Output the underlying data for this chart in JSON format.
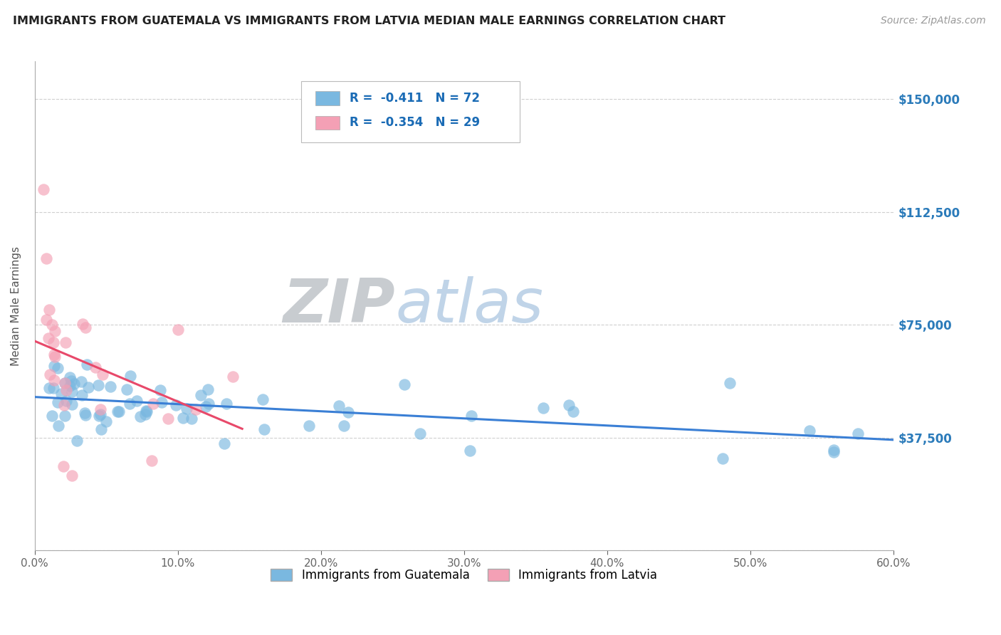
{
  "title": "IMMIGRANTS FROM GUATEMALA VS IMMIGRANTS FROM LATVIA MEDIAN MALE EARNINGS CORRELATION CHART",
  "source": "Source: ZipAtlas.com",
  "ylabel": "Median Male Earnings",
  "xlim": [
    0.0,
    0.6
  ],
  "ylim": [
    0,
    162500
  ],
  "xtick_labels": [
    "0.0%",
    "10.0%",
    "20.0%",
    "30.0%",
    "40.0%",
    "50.0%",
    "60.0%"
  ],
  "xtick_values": [
    0.0,
    0.1,
    0.2,
    0.3,
    0.4,
    0.5,
    0.6
  ],
  "ytick_values": [
    0,
    37500,
    75000,
    112500,
    150000
  ],
  "ytick_labels": [
    "",
    "$37,500",
    "$75,000",
    "$112,500",
    "$150,000"
  ],
  "r_guatemala": -0.411,
  "n_guatemala": 72,
  "r_latvia": -0.354,
  "n_latvia": 29,
  "color_guatemala": "#7ab8e0",
  "color_latvia": "#f4a0b5",
  "trendline_guatemala": "#3a7fd5",
  "trendline_latvia": "#e8496a",
  "watermark_zip": "ZIP",
  "watermark_atlas": "atlas",
  "watermark_zip_color": "#c8ccd0",
  "watermark_atlas_color": "#c0d4e8",
  "background_color": "#ffffff",
  "grid_color": "#bbbbbb",
  "right_axis_color": "#2b7bba",
  "title_color": "#222222",
  "legend_text_color": "#1a6bb5",
  "legend_r_color": "#1a6bb5"
}
